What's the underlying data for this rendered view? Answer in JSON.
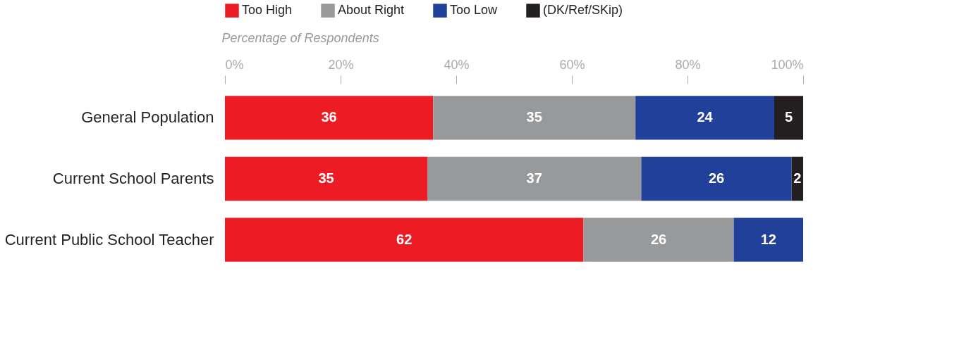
{
  "chart_data": {
    "type": "bar",
    "orientation": "horizontal",
    "stacked": true,
    "xlabel": "Percentage of Respondents",
    "categories": [
      "General Population",
      "Current School Parents",
      "Current Public School Teacher"
    ],
    "series": [
      {
        "name": "Too High",
        "color": "#ed1c24",
        "values": [
          36,
          35,
          62
        ]
      },
      {
        "name": "About Right",
        "color": "#98999b",
        "values": [
          35,
          37,
          26
        ]
      },
      {
        "name": "Too Low",
        "color": "#21409a",
        "values": [
          24,
          26,
          12
        ]
      },
      {
        "name": "(DK/Ref/SKip)",
        "color": "#231f20",
        "values": [
          5,
          2,
          null
        ]
      }
    ],
    "xlim": [
      0,
      100
    ],
    "xticks": [
      {
        "value": 0,
        "label": "0%"
      },
      {
        "value": 20,
        "label": "20%"
      },
      {
        "value": 40,
        "label": "40%"
      },
      {
        "value": 60,
        "label": "60%"
      },
      {
        "value": 80,
        "label": "80%"
      },
      {
        "value": 100,
        "label": "100%"
      }
    ],
    "data_labels": true,
    "grid": false,
    "legend": "top"
  }
}
